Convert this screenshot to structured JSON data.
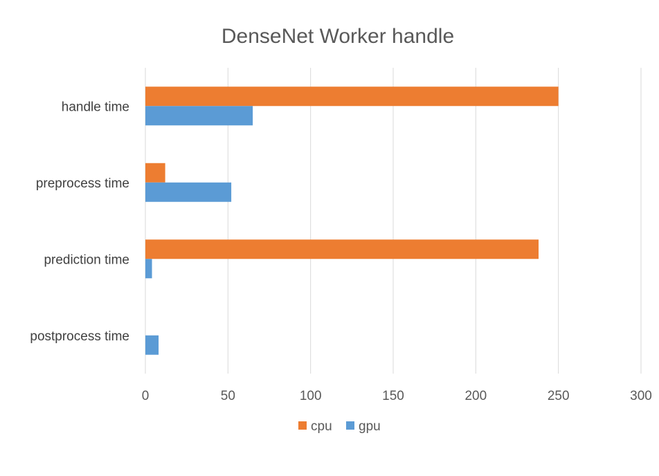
{
  "chart_data": {
    "type": "bar",
    "orientation": "horizontal",
    "title": "DenseNet Worker handle",
    "xlabel": "",
    "ylabel": "",
    "categories": [
      "handle time",
      "preprocess time",
      "prediction time",
      "postprocess time"
    ],
    "series": [
      {
        "name": "cpu",
        "color": "#ED7D31",
        "values": [
          250,
          12,
          238,
          0
        ]
      },
      {
        "name": "gpu",
        "color": "#5B9BD5",
        "values": [
          65,
          52,
          4,
          8
        ]
      }
    ],
    "xlim": [
      0,
      300
    ],
    "xticks": [
      0,
      50,
      100,
      150,
      200,
      250,
      300
    ],
    "grid": true,
    "legend_position": "bottom"
  }
}
